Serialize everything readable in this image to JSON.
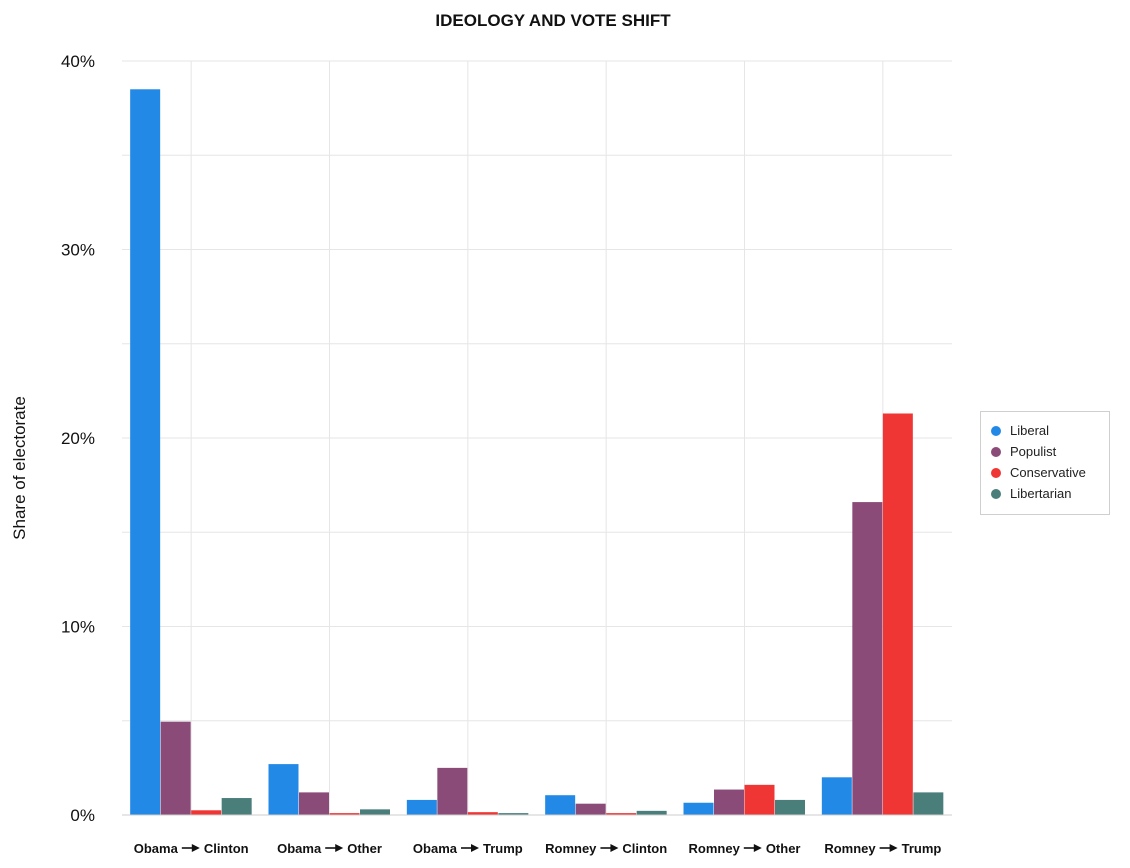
{
  "chart_data": {
    "type": "bar",
    "title": "IDEOLOGY AND VOTE SHIFT",
    "xlabel": "",
    "ylabel": "Share of electorate",
    "ylim": [
      0,
      40
    ],
    "yticks": [
      0,
      10,
      20,
      30,
      40
    ],
    "ytick_labels": [
      "0%",
      "10%",
      "20%",
      "30%",
      "40%"
    ],
    "categories": [
      {
        "from": "Obama",
        "to": "Clinton"
      },
      {
        "from": "Obama",
        "to": "Other"
      },
      {
        "from": "Obama",
        "to": "Trump"
      },
      {
        "from": "Romney",
        "to": "Clinton"
      },
      {
        "from": "Romney",
        "to": "Other"
      },
      {
        "from": "Romney",
        "to": "Trump"
      }
    ],
    "series": [
      {
        "name": "Liberal",
        "color": "#2389e6",
        "values": [
          38.5,
          2.7,
          0.8,
          1.05,
          0.65,
          2.0
        ]
      },
      {
        "name": "Populist",
        "color": "#8a4b78",
        "values": [
          4.95,
          1.2,
          2.5,
          0.6,
          1.35,
          16.6
        ]
      },
      {
        "name": "Conservative",
        "color": "#f03535",
        "values": [
          0.25,
          0.1,
          0.15,
          0.1,
          1.6,
          21.3
        ]
      },
      {
        "name": "Libertarian",
        "color": "#4a7e7b",
        "values": [
          0.9,
          0.3,
          0.1,
          0.22,
          0.8,
          1.2
        ]
      }
    ],
    "grid": true,
    "legend_position": "right"
  }
}
